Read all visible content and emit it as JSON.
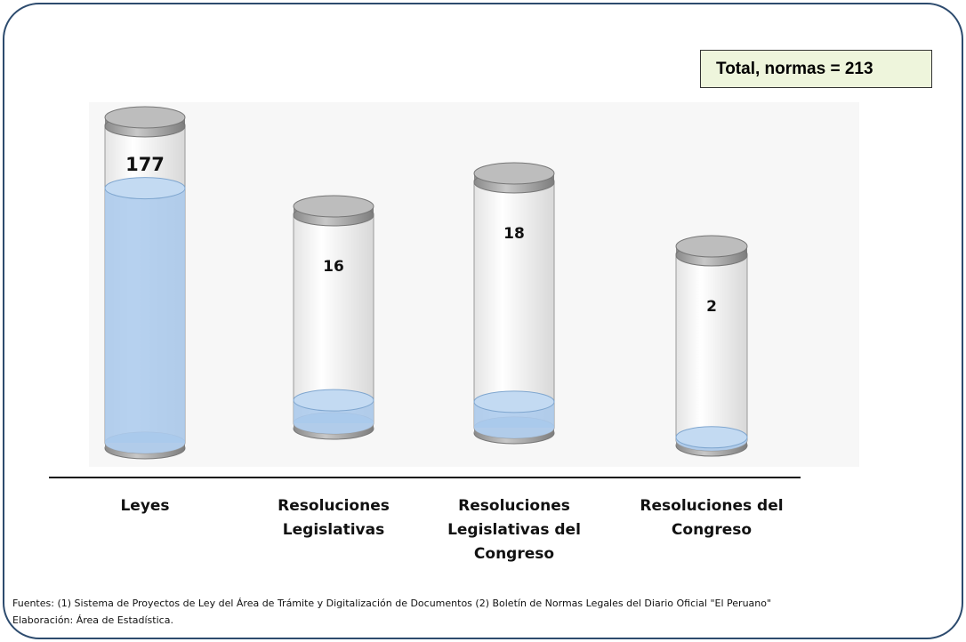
{
  "chart_data": {
    "type": "cylinder",
    "categories": [
      "Leyes",
      "Resoluciones Legislativas",
      "Resoluciones Legislativas del Congreso",
      "Resoluciones del Congreso"
    ],
    "values": [
      177,
      16,
      18,
      2
    ],
    "color": "#a9c9ec",
    "annotation": "Total, normas = 213",
    "notes": [
      "Fuentes: (1) Sistema de Proyectos de Ley del Área de Trámite y Digitalización de Documentos (2) Boletín de Normas Legales del Diario Oficial \"El Peruano\"",
      "Elaboración: Área de Estadística."
    ]
  }
}
